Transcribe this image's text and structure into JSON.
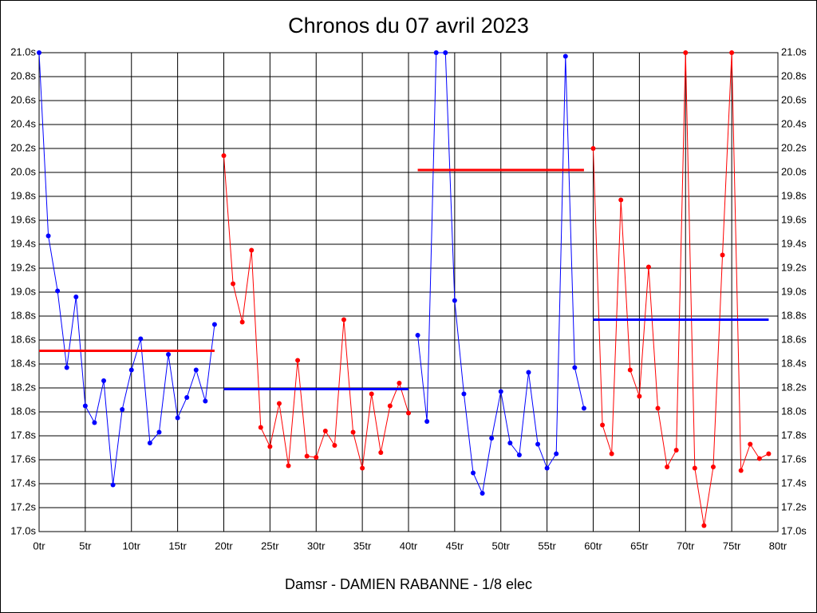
{
  "chart_data": {
    "type": "line",
    "title": "Chronos du 07 avril 2023",
    "x_label": "Damsr - DAMIEN RABANNE - 1/8 elec",
    "grid": true,
    "xlim": [
      0,
      80
    ],
    "ylim": [
      17.0,
      21.0
    ],
    "xticks": [
      {
        "value": 0,
        "label": "0tr"
      },
      {
        "value": 5,
        "label": "5tr"
      },
      {
        "value": 10,
        "label": "10tr"
      },
      {
        "value": 15,
        "label": "15tr"
      },
      {
        "value": 20,
        "label": "20tr"
      },
      {
        "value": 25,
        "label": "25tr"
      },
      {
        "value": 30,
        "label": "30tr"
      },
      {
        "value": 35,
        "label": "35tr"
      },
      {
        "value": 40,
        "label": "40tr"
      },
      {
        "value": 45,
        "label": "45tr"
      },
      {
        "value": 50,
        "label": "50tr"
      },
      {
        "value": 55,
        "label": "55tr"
      },
      {
        "value": 60,
        "label": "60tr"
      },
      {
        "value": 65,
        "label": "65tr"
      },
      {
        "value": 70,
        "label": "70tr"
      },
      {
        "value": 75,
        "label": "75tr"
      },
      {
        "value": 80,
        "label": "80tr"
      }
    ],
    "yticks": [
      {
        "value": 17.0,
        "label": "17.0s"
      },
      {
        "value": 17.2,
        "label": "17.2s"
      },
      {
        "value": 17.4,
        "label": "17.4s"
      },
      {
        "value": 17.6,
        "label": "17.6s"
      },
      {
        "value": 17.8,
        "label": "17.8s"
      },
      {
        "value": 18.0,
        "label": "18.0s"
      },
      {
        "value": 18.2,
        "label": "18.2s"
      },
      {
        "value": 18.4,
        "label": "18.4s"
      },
      {
        "value": 18.6,
        "label": "18.6s"
      },
      {
        "value": 18.8,
        "label": "18.8s"
      },
      {
        "value": 19.0,
        "label": "19.0s"
      },
      {
        "value": 19.2,
        "label": "19.2s"
      },
      {
        "value": 19.4,
        "label": "19.4s"
      },
      {
        "value": 19.6,
        "label": "19.6s"
      },
      {
        "value": 19.8,
        "label": "19.8s"
      },
      {
        "value": 20.0,
        "label": "20.0s"
      },
      {
        "value": 20.2,
        "label": "20.2s"
      },
      {
        "value": 20.4,
        "label": "20.4s"
      },
      {
        "value": 20.6,
        "label": "20.6s"
      },
      {
        "value": 20.8,
        "label": "20.8s"
      },
      {
        "value": 21.0,
        "label": "21.0s"
      }
    ],
    "series": [
      {
        "color": "#0000ff",
        "x": [
          0,
          1,
          2,
          3,
          4,
          5,
          6,
          7,
          8,
          9,
          10,
          11,
          12,
          13,
          14,
          15,
          16,
          17,
          18,
          19
        ],
        "values": [
          21.0,
          19.47,
          19.01,
          18.37,
          18.96,
          18.05,
          17.91,
          18.26,
          17.39,
          18.02,
          18.35,
          18.61,
          17.74,
          17.83,
          18.48,
          17.95,
          18.12,
          18.35,
          18.09,
          18.73
        ]
      },
      {
        "color": "#ff0000",
        "x": [
          20,
          21,
          22,
          23,
          24,
          25,
          26,
          27,
          28,
          29,
          30,
          31,
          32,
          33,
          34,
          35,
          36,
          37,
          38,
          39,
          40
        ],
        "values": [
          20.14,
          19.07,
          18.75,
          19.35,
          17.87,
          17.71,
          18.07,
          17.55,
          18.43,
          17.63,
          17.62,
          17.84,
          17.72,
          18.77,
          17.83,
          17.53,
          18.15,
          17.66,
          18.05,
          18.24,
          17.99
        ]
      },
      {
        "color": "#0000ff",
        "x": [
          41,
          42,
          43,
          44,
          45,
          46,
          47,
          48,
          49,
          50,
          51,
          52,
          53,
          54,
          55,
          56,
          57,
          58,
          59
        ],
        "values": [
          18.64,
          17.92,
          21.0,
          21.0,
          18.93,
          18.15,
          17.49,
          17.32,
          17.78,
          18.17,
          17.74,
          17.64,
          18.33,
          17.73,
          17.53,
          17.65,
          20.97,
          18.37,
          18.03
        ]
      },
      {
        "color": "#ff0000",
        "x": [
          60,
          61,
          62,
          63,
          64,
          65,
          66,
          67,
          68,
          69,
          70,
          71,
          72,
          73,
          74,
          75,
          76,
          77,
          78,
          79
        ],
        "values": [
          20.2,
          17.89,
          17.65,
          19.77,
          18.35,
          18.13,
          19.21,
          18.03,
          17.54,
          17.68,
          21.0,
          17.53,
          17.05,
          17.54,
          19.31,
          21.0,
          17.51,
          17.73,
          17.61,
          17.65
        ]
      }
    ],
    "averages": [
      {
        "color": "#ff0000",
        "start": 0,
        "end": 19,
        "value": 18.51
      },
      {
        "color": "#0000ff",
        "start": 20,
        "end": 40,
        "value": 18.19
      },
      {
        "color": "#ff0000",
        "start": 41,
        "end": 59,
        "value": 20.02
      },
      {
        "color": "#0000ff",
        "start": 60,
        "end": 79,
        "value": 18.77
      }
    ]
  }
}
